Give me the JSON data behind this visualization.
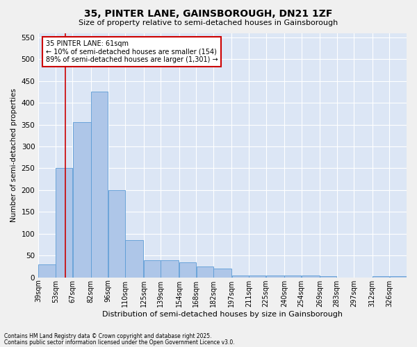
{
  "title": "35, PINTER LANE, GAINSBOROUGH, DN21 1ZF",
  "subtitle": "Size of property relative to semi-detached houses in Gainsborough",
  "xlabel": "Distribution of semi-detached houses by size in Gainsborough",
  "ylabel": "Number of semi-detached properties",
  "footnote1": "Contains HM Land Registry data © Crown copyright and database right 2025.",
  "footnote2": "Contains public sector information licensed under the Open Government Licence v3.0.",
  "annotation_title": "35 PINTER LANE: 61sqm",
  "annotation_line1": "← 10% of semi-detached houses are smaller (154)",
  "annotation_line2": "89% of semi-detached houses are larger (1,301) →",
  "property_size": 61,
  "bar_color": "#aec6e8",
  "bar_edge_color": "#5b9bd5",
  "vline_color": "#cc0000",
  "annotation_box_color": "#cc0000",
  "background_color": "#dce6f5",
  "grid_color": "#ffffff",
  "fig_background": "#f0f0f0",
  "categories": [
    "39sqm",
    "53sqm",
    "67sqm",
    "82sqm",
    "96sqm",
    "110sqm",
    "125sqm",
    "139sqm",
    "154sqm",
    "168sqm",
    "182sqm",
    "197sqm",
    "211sqm",
    "225sqm",
    "240sqm",
    "254sqm",
    "269sqm",
    "283sqm",
    "297sqm",
    "312sqm",
    "326sqm"
  ],
  "bin_edges": [
    39,
    53,
    67,
    82,
    96,
    110,
    125,
    139,
    154,
    168,
    182,
    197,
    211,
    225,
    240,
    254,
    269,
    283,
    297,
    312,
    326,
    340
  ],
  "values": [
    30,
    250,
    355,
    425,
    200,
    85,
    40,
    40,
    35,
    25,
    20,
    5,
    5,
    5,
    5,
    5,
    2,
    0,
    0,
    2,
    2
  ],
  "ylim": [
    0,
    560
  ],
  "yticks": [
    0,
    50,
    100,
    150,
    200,
    250,
    300,
    350,
    400,
    450,
    500,
    550
  ]
}
